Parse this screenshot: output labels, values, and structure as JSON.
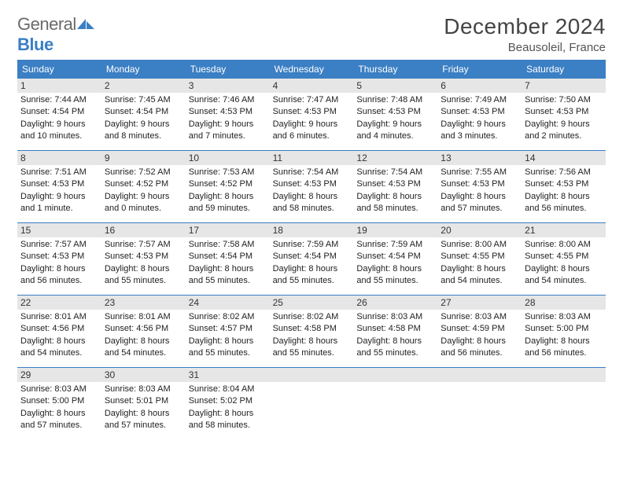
{
  "brand": {
    "word1": "General",
    "word2": "Blue"
  },
  "title": "December 2024",
  "location": "Beausoleil, France",
  "colors": {
    "header_bg": "#3b7fc4",
    "daynum_bg": "#e6e6e6",
    "text": "#222222",
    "title_color": "#444444",
    "logo_gray": "#6a6a6a"
  },
  "typography": {
    "title_fontsize": 28,
    "subtitle_fontsize": 15,
    "dayhead_fontsize": 12,
    "body_fontsize": 11
  },
  "layout": {
    "cols": 7,
    "rows": 5,
    "cell_min_height": 92
  },
  "weekdays": [
    "Sunday",
    "Monday",
    "Tuesday",
    "Wednesday",
    "Thursday",
    "Friday",
    "Saturday"
  ],
  "days": [
    {
      "n": "1",
      "sunrise": "Sunrise: 7:44 AM",
      "sunset": "Sunset: 4:54 PM",
      "d1": "Daylight: 9 hours",
      "d2": "and 10 minutes."
    },
    {
      "n": "2",
      "sunrise": "Sunrise: 7:45 AM",
      "sunset": "Sunset: 4:54 PM",
      "d1": "Daylight: 9 hours",
      "d2": "and 8 minutes."
    },
    {
      "n": "3",
      "sunrise": "Sunrise: 7:46 AM",
      "sunset": "Sunset: 4:53 PM",
      "d1": "Daylight: 9 hours",
      "d2": "and 7 minutes."
    },
    {
      "n": "4",
      "sunrise": "Sunrise: 7:47 AM",
      "sunset": "Sunset: 4:53 PM",
      "d1": "Daylight: 9 hours",
      "d2": "and 6 minutes."
    },
    {
      "n": "5",
      "sunrise": "Sunrise: 7:48 AM",
      "sunset": "Sunset: 4:53 PM",
      "d1": "Daylight: 9 hours",
      "d2": "and 4 minutes."
    },
    {
      "n": "6",
      "sunrise": "Sunrise: 7:49 AM",
      "sunset": "Sunset: 4:53 PM",
      "d1": "Daylight: 9 hours",
      "d2": "and 3 minutes."
    },
    {
      "n": "7",
      "sunrise": "Sunrise: 7:50 AM",
      "sunset": "Sunset: 4:53 PM",
      "d1": "Daylight: 9 hours",
      "d2": "and 2 minutes."
    },
    {
      "n": "8",
      "sunrise": "Sunrise: 7:51 AM",
      "sunset": "Sunset: 4:53 PM",
      "d1": "Daylight: 9 hours",
      "d2": "and 1 minute."
    },
    {
      "n": "9",
      "sunrise": "Sunrise: 7:52 AM",
      "sunset": "Sunset: 4:52 PM",
      "d1": "Daylight: 9 hours",
      "d2": "and 0 minutes."
    },
    {
      "n": "10",
      "sunrise": "Sunrise: 7:53 AM",
      "sunset": "Sunset: 4:52 PM",
      "d1": "Daylight: 8 hours",
      "d2": "and 59 minutes."
    },
    {
      "n": "11",
      "sunrise": "Sunrise: 7:54 AM",
      "sunset": "Sunset: 4:53 PM",
      "d1": "Daylight: 8 hours",
      "d2": "and 58 minutes."
    },
    {
      "n": "12",
      "sunrise": "Sunrise: 7:54 AM",
      "sunset": "Sunset: 4:53 PM",
      "d1": "Daylight: 8 hours",
      "d2": "and 58 minutes."
    },
    {
      "n": "13",
      "sunrise": "Sunrise: 7:55 AM",
      "sunset": "Sunset: 4:53 PM",
      "d1": "Daylight: 8 hours",
      "d2": "and 57 minutes."
    },
    {
      "n": "14",
      "sunrise": "Sunrise: 7:56 AM",
      "sunset": "Sunset: 4:53 PM",
      "d1": "Daylight: 8 hours",
      "d2": "and 56 minutes."
    },
    {
      "n": "15",
      "sunrise": "Sunrise: 7:57 AM",
      "sunset": "Sunset: 4:53 PM",
      "d1": "Daylight: 8 hours",
      "d2": "and 56 minutes."
    },
    {
      "n": "16",
      "sunrise": "Sunrise: 7:57 AM",
      "sunset": "Sunset: 4:53 PM",
      "d1": "Daylight: 8 hours",
      "d2": "and 55 minutes."
    },
    {
      "n": "17",
      "sunrise": "Sunrise: 7:58 AM",
      "sunset": "Sunset: 4:54 PM",
      "d1": "Daylight: 8 hours",
      "d2": "and 55 minutes."
    },
    {
      "n": "18",
      "sunrise": "Sunrise: 7:59 AM",
      "sunset": "Sunset: 4:54 PM",
      "d1": "Daylight: 8 hours",
      "d2": "and 55 minutes."
    },
    {
      "n": "19",
      "sunrise": "Sunrise: 7:59 AM",
      "sunset": "Sunset: 4:54 PM",
      "d1": "Daylight: 8 hours",
      "d2": "and 55 minutes."
    },
    {
      "n": "20",
      "sunrise": "Sunrise: 8:00 AM",
      "sunset": "Sunset: 4:55 PM",
      "d1": "Daylight: 8 hours",
      "d2": "and 54 minutes."
    },
    {
      "n": "21",
      "sunrise": "Sunrise: 8:00 AM",
      "sunset": "Sunset: 4:55 PM",
      "d1": "Daylight: 8 hours",
      "d2": "and 54 minutes."
    },
    {
      "n": "22",
      "sunrise": "Sunrise: 8:01 AM",
      "sunset": "Sunset: 4:56 PM",
      "d1": "Daylight: 8 hours",
      "d2": "and 54 minutes."
    },
    {
      "n": "23",
      "sunrise": "Sunrise: 8:01 AM",
      "sunset": "Sunset: 4:56 PM",
      "d1": "Daylight: 8 hours",
      "d2": "and 54 minutes."
    },
    {
      "n": "24",
      "sunrise": "Sunrise: 8:02 AM",
      "sunset": "Sunset: 4:57 PM",
      "d1": "Daylight: 8 hours",
      "d2": "and 55 minutes."
    },
    {
      "n": "25",
      "sunrise": "Sunrise: 8:02 AM",
      "sunset": "Sunset: 4:58 PM",
      "d1": "Daylight: 8 hours",
      "d2": "and 55 minutes."
    },
    {
      "n": "26",
      "sunrise": "Sunrise: 8:03 AM",
      "sunset": "Sunset: 4:58 PM",
      "d1": "Daylight: 8 hours",
      "d2": "and 55 minutes."
    },
    {
      "n": "27",
      "sunrise": "Sunrise: 8:03 AM",
      "sunset": "Sunset: 4:59 PM",
      "d1": "Daylight: 8 hours",
      "d2": "and 56 minutes."
    },
    {
      "n": "28",
      "sunrise": "Sunrise: 8:03 AM",
      "sunset": "Sunset: 5:00 PM",
      "d1": "Daylight: 8 hours",
      "d2": "and 56 minutes."
    },
    {
      "n": "29",
      "sunrise": "Sunrise: 8:03 AM",
      "sunset": "Sunset: 5:00 PM",
      "d1": "Daylight: 8 hours",
      "d2": "and 57 minutes."
    },
    {
      "n": "30",
      "sunrise": "Sunrise: 8:03 AM",
      "sunset": "Sunset: 5:01 PM",
      "d1": "Daylight: 8 hours",
      "d2": "and 57 minutes."
    },
    {
      "n": "31",
      "sunrise": "Sunrise: 8:04 AM",
      "sunset": "Sunset: 5:02 PM",
      "d1": "Daylight: 8 hours",
      "d2": "and 58 minutes."
    },
    {
      "n": "",
      "empty": true
    },
    {
      "n": "",
      "empty": true
    },
    {
      "n": "",
      "empty": true
    },
    {
      "n": "",
      "empty": true
    }
  ]
}
